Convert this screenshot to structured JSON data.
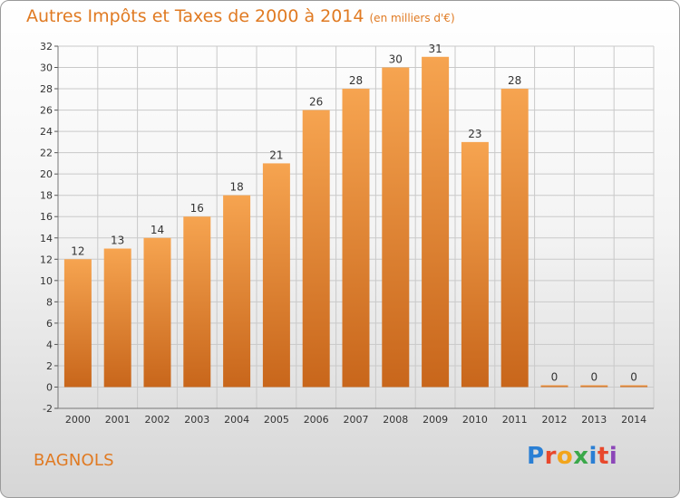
{
  "title": "Autres Impôts et Taxes de 2000 à 2014",
  "unit_label": "(en milliers d'€)",
  "commune": "BAGNOLS",
  "logo": {
    "text": "Proxiti",
    "letters": [
      {
        "ch": "P",
        "color": "#2a7fd4"
      },
      {
        "ch": "r",
        "color": "#e8482c"
      },
      {
        "ch": "o",
        "color": "#f2a51c"
      },
      {
        "ch": "x",
        "color": "#3aa84a"
      },
      {
        "ch": "i",
        "color": "#2a7fd4"
      },
      {
        "ch": "t",
        "color": "#e8482c"
      },
      {
        "ch": "i",
        "color": "#8c46b8"
      }
    ]
  },
  "colors": {
    "accent": "#e07a22",
    "bar_top": "#f6a450",
    "bar_bottom": "#c8661b",
    "grid": "#c9c9c9",
    "axis_text": "#333333"
  },
  "chart_data": {
    "type": "bar",
    "categories": [
      "2000",
      "2001",
      "2002",
      "2003",
      "2004",
      "2005",
      "2006",
      "2007",
      "2008",
      "2009",
      "2010",
      "2011",
      "2012",
      "2013",
      "2014"
    ],
    "values": [
      12,
      13,
      14,
      16,
      18,
      21,
      26,
      28,
      30,
      31,
      23,
      28,
      0,
      0,
      0
    ],
    "data_labels": [
      "12",
      "13",
      "14",
      "16",
      "18",
      "21",
      "26",
      "28",
      "30",
      "31",
      "23",
      "28",
      "0",
      "0",
      "0"
    ],
    "ylim": [
      -2,
      32
    ],
    "yticks": [
      -2,
      0,
      2,
      4,
      6,
      8,
      10,
      12,
      14,
      16,
      18,
      20,
      22,
      24,
      26,
      28,
      30,
      32
    ],
    "grid": true,
    "legend": "none"
  }
}
